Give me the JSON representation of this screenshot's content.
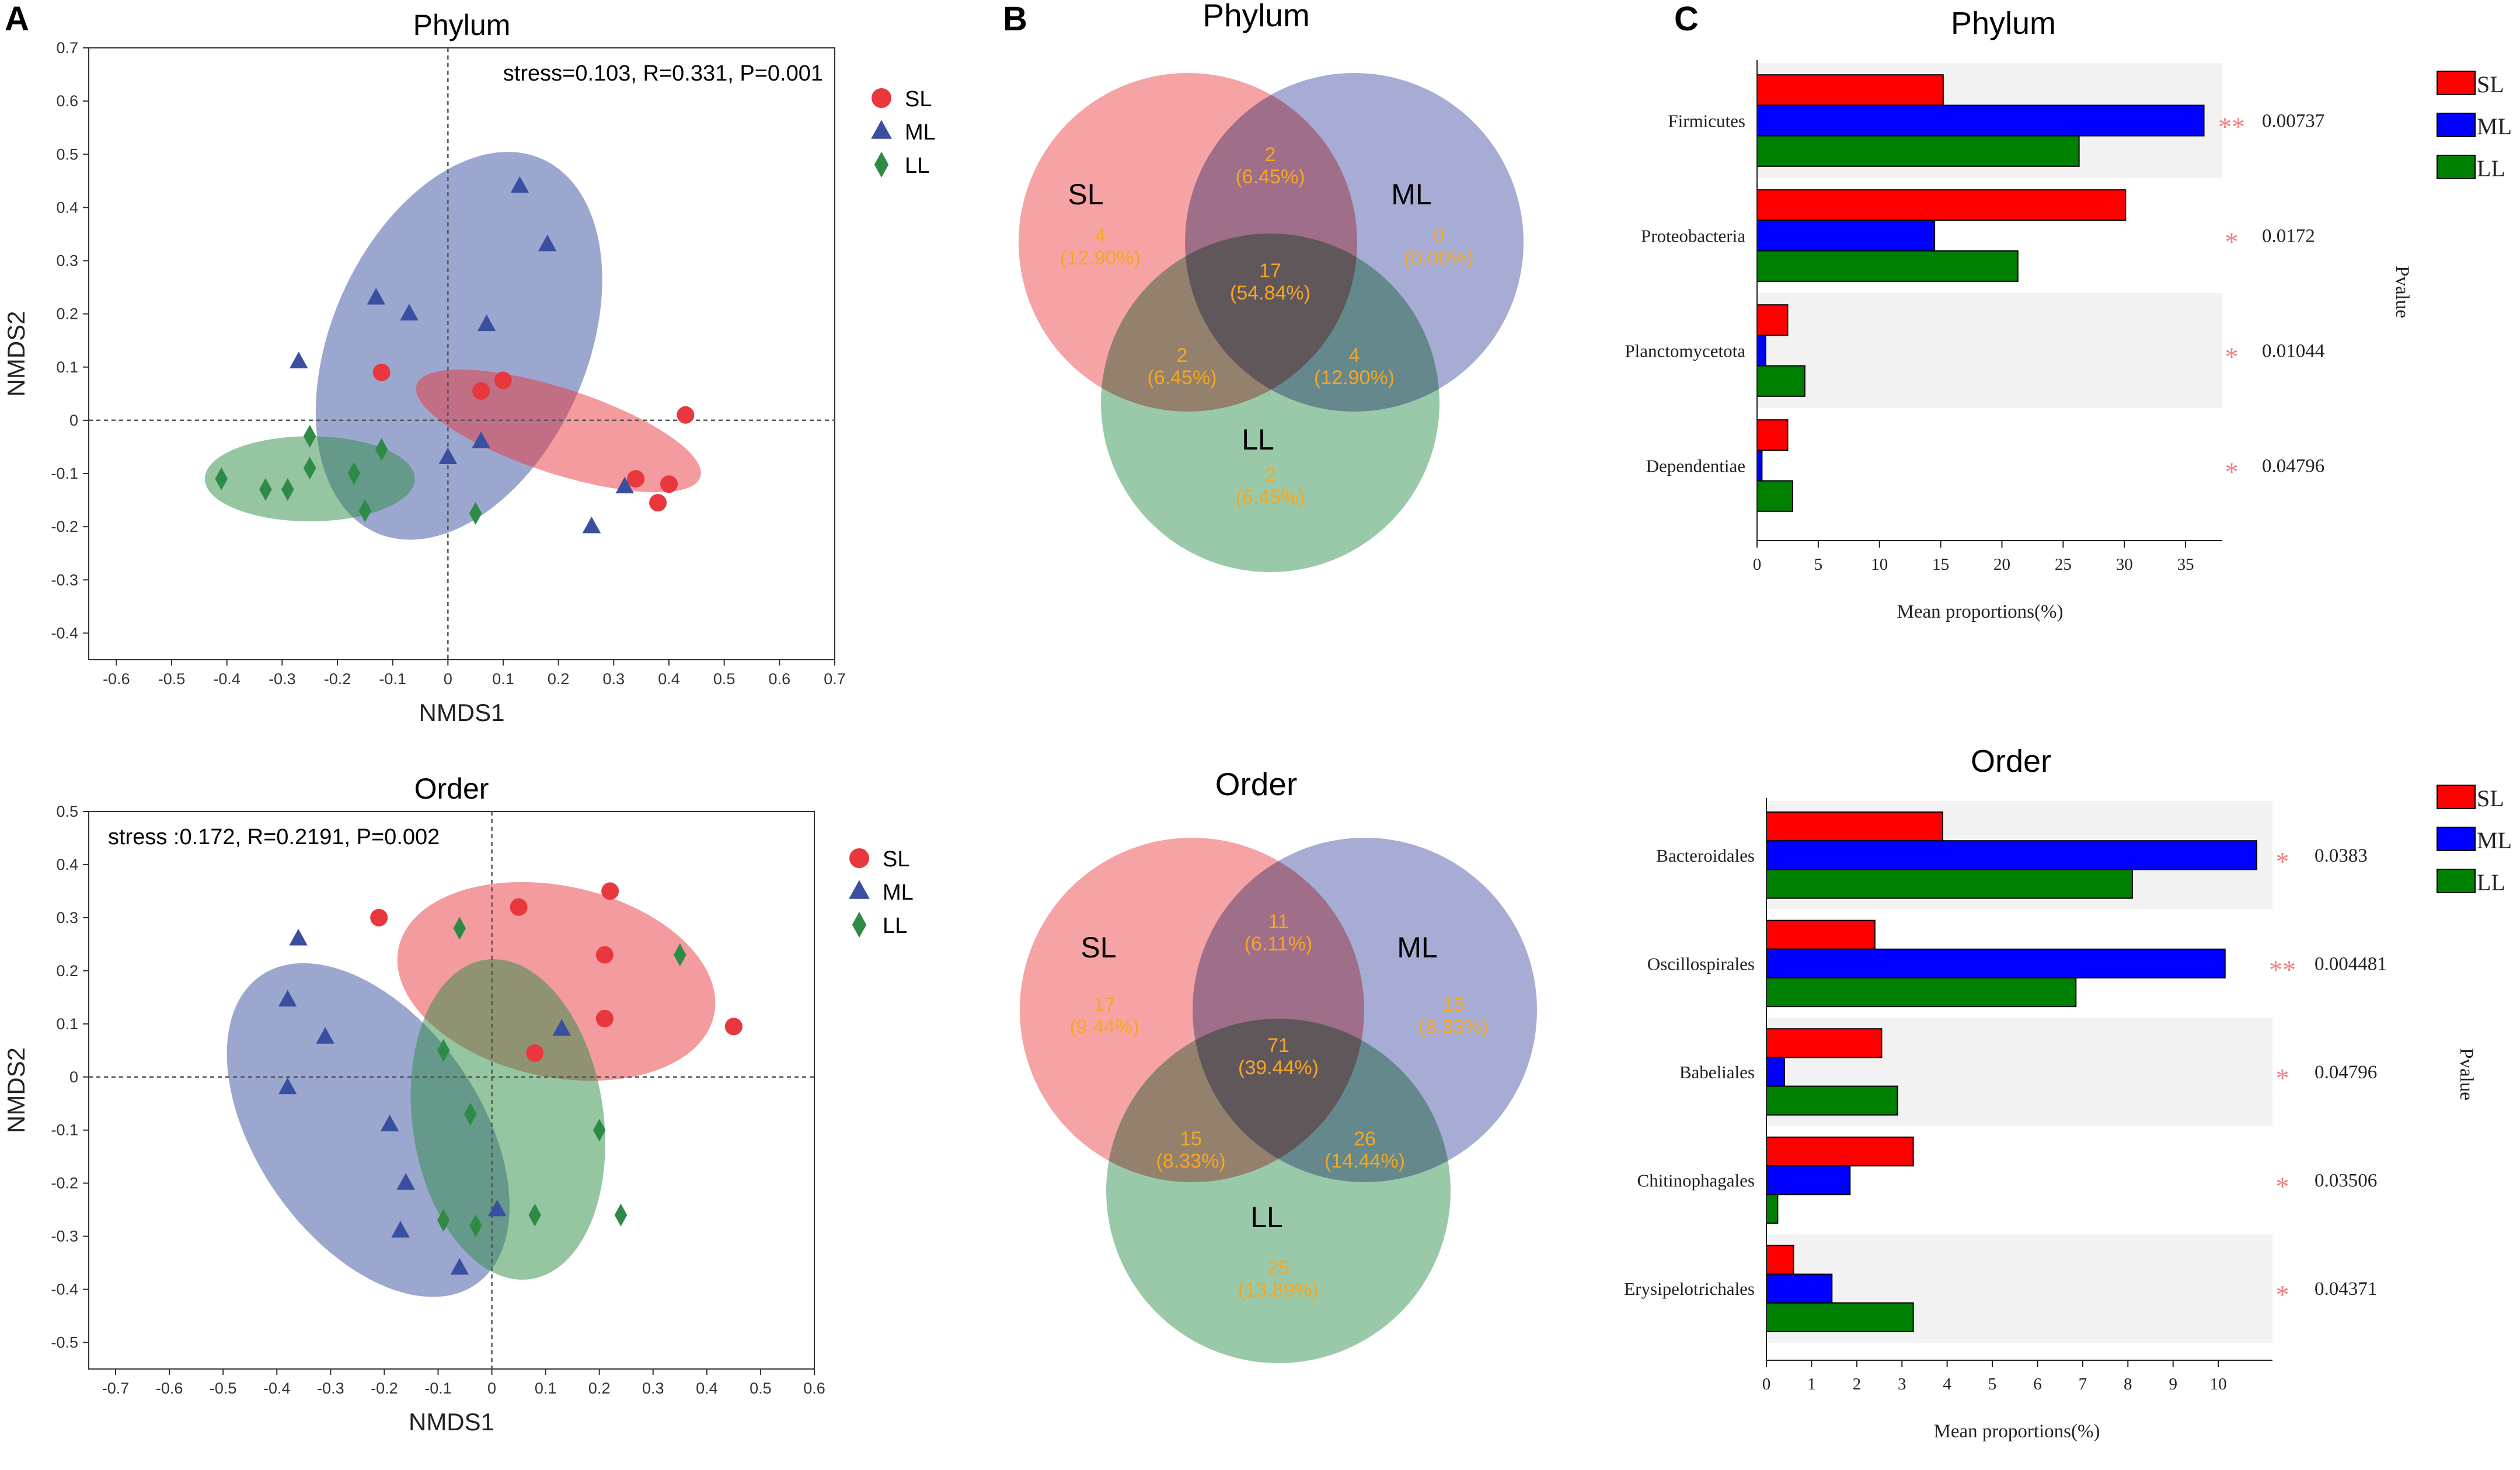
{
  "panel_labels": [
    "A",
    "B",
    "C"
  ],
  "colors": {
    "SL": "#e8383d",
    "ML": "#3a4fa0",
    "LL": "#2e8b46",
    "venn_SL": "#ef6a6e",
    "venn_ML": "#7079ba",
    "venn_LL": "#5aa873",
    "venn_num": "#f5a623",
    "bar_SL": "#ff0000",
    "bar_ML": "#0000ff",
    "bar_LL": "#008000",
    "star": "#f08080",
    "band": "#f2f2f2"
  },
  "chart_data": [
    {
      "id": "nmds_phylum",
      "type": "scatter",
      "title": "Phylum",
      "xlabel": "NMDS1",
      "ylabel": "NMDS2",
      "annotation": "stress=0.103, R=0.331, P=0.001",
      "xlim": [
        -0.65,
        0.7
      ],
      "ylim": [
        -0.45,
        0.7
      ],
      "xticks": [
        -0.6,
        -0.5,
        -0.4,
        -0.3,
        -0.2,
        -0.1,
        0,
        0.1,
        0.2,
        0.3,
        0.4,
        0.5,
        0.6,
        0.7
      ],
      "xtick_labels": [
        "-0.6",
        "-0.5",
        "-0.4",
        "-0.3",
        "-0.2",
        "-0.1",
        "0",
        "0.1",
        "0.2",
        "0.3",
        "0.4",
        "0.5",
        "0.6",
        "0.7"
      ],
      "yticks": [
        -0.4,
        -0.3,
        -0.2,
        -0.1,
        0,
        0.1,
        0.2,
        0.3,
        0.4,
        0.5,
        0.6,
        0.7
      ],
      "ytick_labels": [
        "-0.4",
        "-0.3",
        "-0.2",
        "-0.1",
        "0",
        "0.1",
        "0.2",
        "0.3",
        "0.4",
        "0.5",
        "0.6",
        "0.7"
      ],
      "legend": [
        "SL",
        "ML",
        "LL"
      ],
      "ellipses": [
        {
          "group": "ML",
          "cx": 0.02,
          "cy": 0.14,
          "rx": 0.37,
          "ry": 0.24,
          "angle": 66
        },
        {
          "group": "SL",
          "cx": 0.2,
          "cy": -0.02,
          "rx": 0.27,
          "ry": 0.08,
          "angle": -18
        },
        {
          "group": "LL",
          "cx": -0.25,
          "cy": -0.11,
          "rx": 0.19,
          "ry": 0.08,
          "angle": 0
        }
      ],
      "series": [
        {
          "name": "SL",
          "marker": "circle",
          "points": [
            [
              -0.12,
              0.09
            ],
            [
              0.06,
              0.055
            ],
            [
              0.1,
              0.075
            ],
            [
              0.43,
              0.01
            ],
            [
              0.34,
              -0.11
            ],
            [
              0.4,
              -0.12
            ],
            [
              0.38,
              -0.155
            ]
          ]
        },
        {
          "name": "ML",
          "marker": "triangle",
          "points": [
            [
              0.13,
              0.44
            ],
            [
              0.18,
              0.33
            ],
            [
              -0.13,
              0.23
            ],
            [
              -0.07,
              0.2
            ],
            [
              0.07,
              0.18
            ],
            [
              -0.27,
              0.11
            ],
            [
              0.06,
              -0.04
            ],
            [
              0.0,
              -0.07
            ],
            [
              0.32,
              -0.125
            ],
            [
              0.26,
              -0.2
            ]
          ]
        },
        {
          "name": "LL",
          "marker": "diamond",
          "points": [
            [
              -0.41,
              -0.11
            ],
            [
              -0.33,
              -0.13
            ],
            [
              -0.29,
              -0.13
            ],
            [
              -0.25,
              -0.03
            ],
            [
              -0.25,
              -0.09
            ],
            [
              -0.17,
              -0.1
            ],
            [
              -0.12,
              -0.055
            ],
            [
              -0.15,
              -0.17
            ],
            [
              0.05,
              -0.175
            ]
          ]
        }
      ]
    },
    {
      "id": "nmds_order",
      "type": "scatter",
      "title": "Order",
      "xlabel": "NMDS1",
      "ylabel": "NMDS2",
      "annotation": "stress :0.172, R=0.2191, P=0.002",
      "xlim": [
        -0.75,
        0.6
      ],
      "ylim": [
        -0.55,
        0.5
      ],
      "xticks": [
        -0.7,
        -0.6,
        -0.5,
        -0.4,
        -0.3,
        -0.2,
        -0.1,
        0,
        0.1,
        0.2,
        0.3,
        0.4,
        0.5,
        0.6
      ],
      "xtick_labels": [
        "-0.7",
        "-0.6",
        "-0.5",
        "-0.4",
        "-0.3",
        "-0.2",
        "-0.1",
        "0",
        "0.1",
        "0.2",
        "0.3",
        "0.4",
        "0.5",
        "0.6"
      ],
      "yticks": [
        -0.5,
        -0.4,
        -0.3,
        -0.2,
        -0.1,
        0,
        0.1,
        0.2,
        0.3,
        0.4,
        0.5
      ],
      "ytick_labels": [
        "-0.5",
        "-0.4",
        "-0.3",
        "-0.2",
        "-0.1",
        "0",
        "0.1",
        "0.2",
        "0.3",
        "0.4",
        "0.5"
      ],
      "legend": [
        "SL",
        "ML",
        "LL"
      ],
      "ellipses": [
        {
          "group": "SL",
          "cx": 0.12,
          "cy": 0.18,
          "rx": 0.3,
          "ry": 0.18,
          "angle": -12
        },
        {
          "group": "ML",
          "cx": -0.23,
          "cy": -0.1,
          "rx": 0.35,
          "ry": 0.21,
          "angle": -55
        },
        {
          "group": "LL",
          "cx": 0.03,
          "cy": -0.08,
          "rx": 0.3,
          "ry": 0.18,
          "angle": -82
        }
      ],
      "series": [
        {
          "name": "SL",
          "marker": "circle",
          "points": [
            [
              -0.21,
              0.3
            ],
            [
              0.05,
              0.32
            ],
            [
              0.22,
              0.35
            ],
            [
              0.21,
              0.23
            ],
            [
              0.21,
              0.11
            ],
            [
              0.08,
              0.045
            ],
            [
              0.45,
              0.095
            ]
          ]
        },
        {
          "name": "ML",
          "marker": "triangle",
          "points": [
            [
              -0.36,
              0.26
            ],
            [
              -0.38,
              0.145
            ],
            [
              -0.31,
              0.075
            ],
            [
              -0.38,
              -0.02
            ],
            [
              -0.19,
              -0.09
            ],
            [
              -0.16,
              -0.2
            ],
            [
              -0.17,
              -0.29
            ],
            [
              -0.06,
              -0.36
            ],
            [
              0.13,
              0.09
            ],
            [
              0.01,
              -0.25
            ]
          ]
        },
        {
          "name": "LL",
          "marker": "diamond",
          "points": [
            [
              -0.06,
              0.28
            ],
            [
              0.35,
              0.23
            ],
            [
              -0.09,
              0.05
            ],
            [
              -0.04,
              -0.07
            ],
            [
              0.2,
              -0.1
            ],
            [
              -0.09,
              -0.27
            ],
            [
              -0.03,
              -0.28
            ],
            [
              0.08,
              -0.26
            ],
            [
              0.24,
              -0.26
            ]
          ]
        }
      ]
    },
    {
      "id": "venn_phylum",
      "type": "venn",
      "title": "Phylum",
      "sets": [
        "SL",
        "ML",
        "LL"
      ],
      "regions": [
        {
          "id": "SL",
          "count": "4",
          "pct": "(12.90%)"
        },
        {
          "id": "ML",
          "count": "0",
          "pct": "(0.00%)"
        },
        {
          "id": "LL",
          "count": "2",
          "pct": "(6.45%)"
        },
        {
          "id": "SL_ML",
          "count": "2",
          "pct": "(6.45%)"
        },
        {
          "id": "SL_LL",
          "count": "2",
          "pct": "(6.45%)"
        },
        {
          "id": "ML_LL",
          "count": "4",
          "pct": "(12.90%)"
        },
        {
          "id": "all",
          "count": "17",
          "pct": "(54.84%)"
        }
      ]
    },
    {
      "id": "venn_order",
      "type": "venn",
      "title": "Order",
      "sets": [
        "SL",
        "ML",
        "LL"
      ],
      "regions": [
        {
          "id": "SL",
          "count": "17",
          "pct": "(9.44%)"
        },
        {
          "id": "ML",
          "count": "15",
          "pct": "(8.33%)"
        },
        {
          "id": "LL",
          "count": "25",
          "pct": "(13.89%)"
        },
        {
          "id": "SL_ML",
          "count": "11",
          "pct": "(6.11%)"
        },
        {
          "id": "SL_LL",
          "count": "15",
          "pct": "(8.33%)"
        },
        {
          "id": "ML_LL",
          "count": "26",
          "pct": "(14.44%)"
        },
        {
          "id": "all",
          "count": "71",
          "pct": "(39.44%)"
        }
      ]
    },
    {
      "id": "bars_phylum",
      "type": "bar",
      "title": "Phylum",
      "xlabel": "Mean proportions(%)",
      "pvalue_label": "Pvalue",
      "xlim": [
        0,
        38
      ],
      "xticks": [
        0,
        5,
        10,
        15,
        20,
        25,
        30,
        35
      ],
      "xtick_labels": [
        "0",
        "5",
        "10",
        "15",
        "20",
        "25",
        "30",
        "35"
      ],
      "legend": [
        "SL",
        "ML",
        "LL"
      ],
      "categories": [
        "Firmicutes",
        "Proteobacteria",
        "Planctomycetota",
        "Dependentiae"
      ],
      "series": [
        {
          "name": "SL",
          "values": [
            15.2,
            30.1,
            2.5,
            2.5
          ]
        },
        {
          "name": "ML",
          "values": [
            36.5,
            14.5,
            0.7,
            0.4
          ]
        },
        {
          "name": "LL",
          "values": [
            26.3,
            21.3,
            3.9,
            2.9
          ]
        }
      ],
      "stars": [
        "**",
        "*",
        "*",
        "*"
      ],
      "pvalues": [
        "0.00737",
        "0.0172",
        "0.01044",
        "0.04796"
      ]
    },
    {
      "id": "bars_order",
      "type": "bar",
      "title": "Order",
      "xlabel": "Mean proportions(%)",
      "pvalue_label": "Pvalue",
      "xlim": [
        0,
        11.2
      ],
      "xticks": [
        0,
        1,
        2,
        3,
        4,
        5,
        6,
        7,
        8,
        9,
        10
      ],
      "xtick_labels": [
        "0",
        "1",
        "2",
        "3",
        "4",
        "5",
        "6",
        "7",
        "8",
        "9",
        "10"
      ],
      "legend": [
        "SL",
        "ML",
        "LL"
      ],
      "categories": [
        "Bacteroidales",
        "Oscillospirales",
        "Babeliales",
        "Chitinophagales",
        "Erysipelotrichales"
      ],
      "series": [
        {
          "name": "SL",
          "values": [
            3.9,
            2.4,
            2.55,
            3.25,
            0.6
          ]
        },
        {
          "name": "ML",
          "values": [
            10.85,
            10.15,
            0.4,
            1.85,
            1.45
          ]
        },
        {
          "name": "LL",
          "values": [
            8.1,
            6.85,
            2.9,
            0.25,
            3.25
          ]
        }
      ],
      "stars": [
        "*",
        "**",
        "*",
        "*",
        "*"
      ],
      "pvalues": [
        "0.0383",
        "0.004481",
        "0.04796",
        "0.03506",
        "0.04371"
      ]
    }
  ]
}
